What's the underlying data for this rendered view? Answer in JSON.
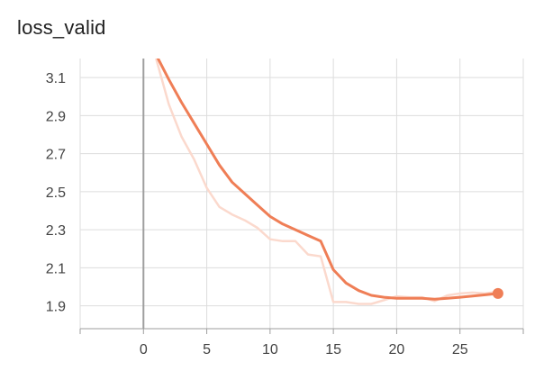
{
  "chart_data": {
    "type": "line",
    "title": "loss_valid",
    "xlabel": "",
    "ylabel": "",
    "xlim": [
      -5,
      30
    ],
    "ylim": [
      1.78,
      3.2
    ],
    "x_ticks": [
      0,
      5,
      10,
      15,
      20,
      25
    ],
    "y_ticks": [
      1.9,
      2.1,
      2.3,
      2.5,
      2.7,
      2.9,
      3.1
    ],
    "x_minor_ticks": [
      -5,
      0,
      5,
      10,
      15,
      20,
      25,
      30
    ],
    "grid": true,
    "legend": "none",
    "colors": {
      "series": "#ef7e56",
      "raw": "#fbd9cd",
      "grid": "#dddddd",
      "axis": "#9e9e9e",
      "zero_line": "#9e9e9e"
    },
    "series": [
      {
        "role": "smoothed",
        "x": [
          1,
          2,
          3,
          4,
          5,
          6,
          7,
          8,
          9,
          10,
          11,
          12,
          13,
          14,
          15,
          16,
          17,
          18,
          19,
          20,
          21,
          22,
          23,
          24,
          25,
          26,
          27,
          28
        ],
        "y": [
          3.22,
          3.09,
          2.97,
          2.86,
          2.75,
          2.64,
          2.55,
          2.49,
          2.43,
          2.37,
          2.33,
          2.3,
          2.27,
          2.24,
          2.09,
          2.02,
          1.98,
          1.955,
          1.945,
          1.94,
          1.94,
          1.94,
          1.935,
          1.94,
          1.945,
          1.952,
          1.958,
          1.965
        ]
      },
      {
        "role": "raw",
        "x": [
          1,
          2,
          3,
          4,
          5,
          6,
          7,
          8,
          9,
          10,
          11,
          12,
          13,
          14,
          15,
          16,
          17,
          18,
          19,
          20,
          21,
          22,
          23,
          24,
          25,
          26,
          27,
          28
        ],
        "y": [
          3.2,
          2.96,
          2.79,
          2.67,
          2.52,
          2.42,
          2.38,
          2.35,
          2.31,
          2.25,
          2.24,
          2.24,
          2.17,
          2.16,
          1.92,
          1.92,
          1.91,
          1.91,
          1.93,
          1.95,
          1.945,
          1.945,
          1.925,
          1.955,
          1.965,
          1.97,
          1.965,
          1.975
        ]
      }
    ],
    "last_point": {
      "x": 28,
      "y": 1.965
    }
  }
}
